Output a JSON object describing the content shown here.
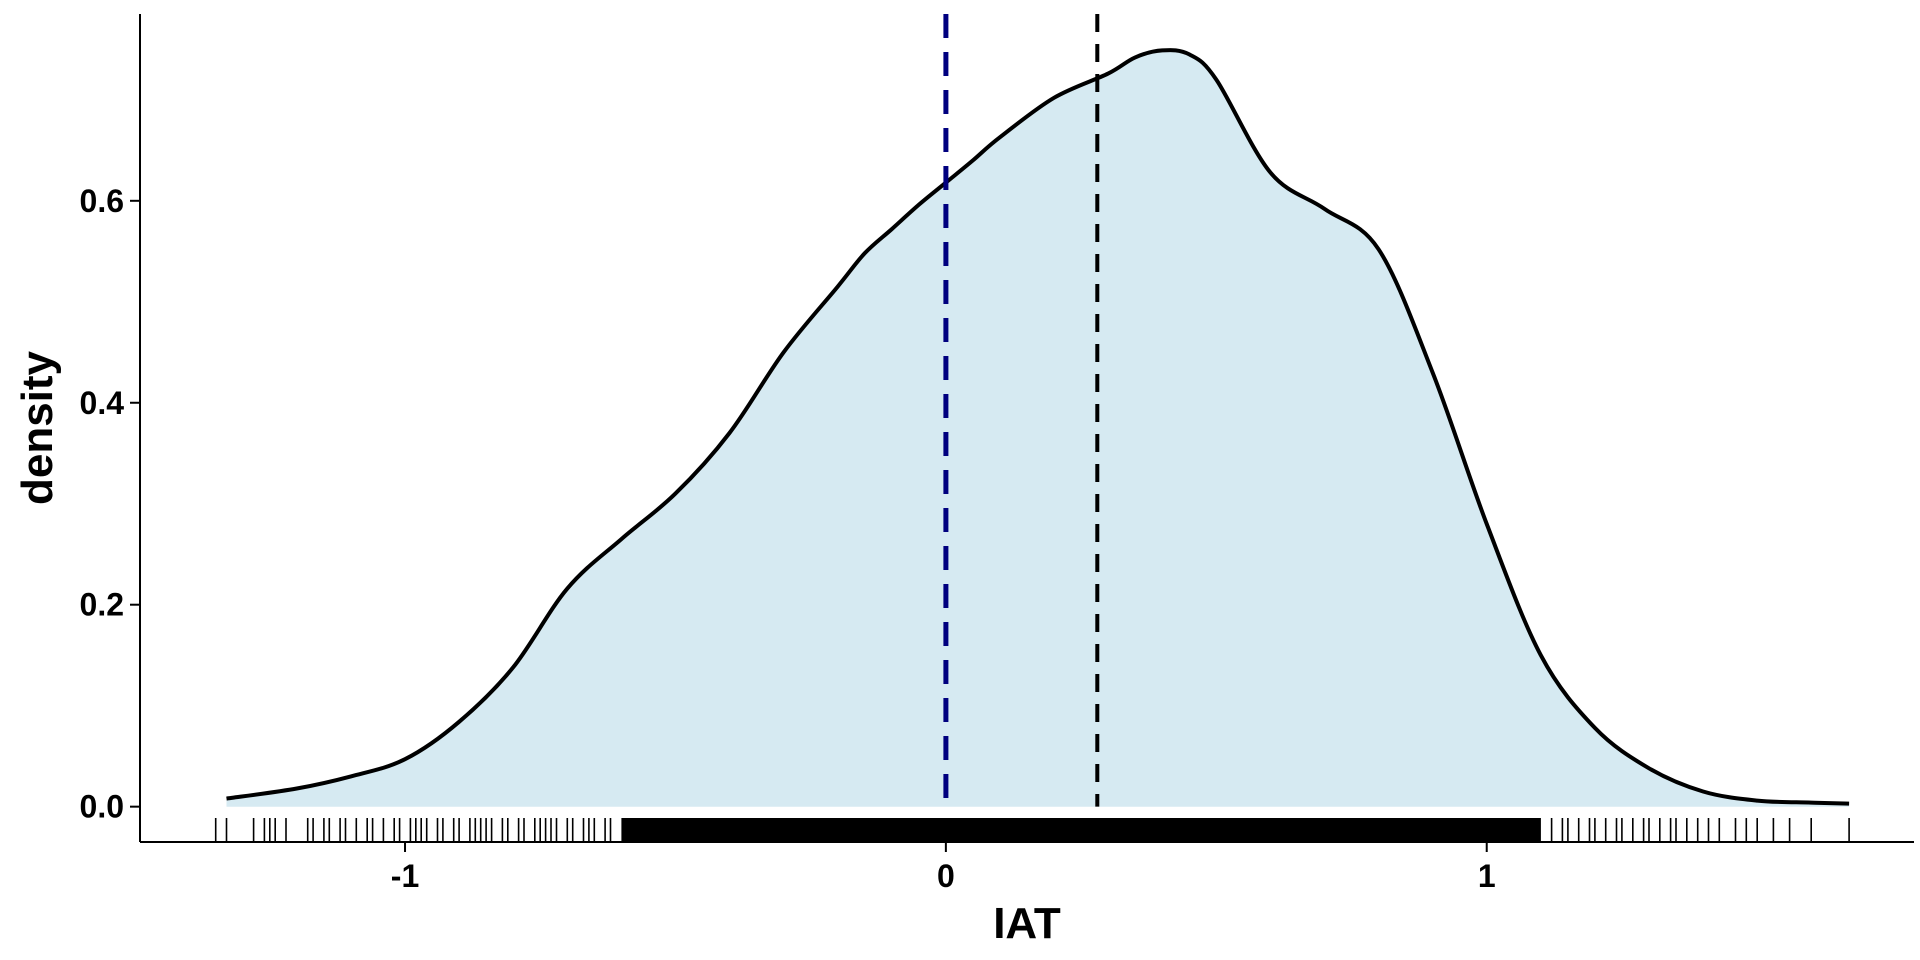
{
  "chart_data": {
    "type": "area",
    "title": "",
    "xlabel": "IAT",
    "ylabel": "density",
    "xlim": [
      -1.49,
      1.79
    ],
    "ylim": [
      -0.035,
      0.785
    ],
    "x_ticks": [
      -1,
      0,
      1
    ],
    "x_tick_labels": [
      "-1",
      "0",
      "1"
    ],
    "y_ticks": [
      0.0,
      0.2,
      0.4,
      0.6
    ],
    "y_tick_labels": [
      "0.0",
      "0.2",
      "0.4",
      "0.6"
    ],
    "grid": false,
    "legend": "none",
    "colors": {
      "fill": "#d6eaf2",
      "curve": "#000000",
      "zero_line": "#00007f",
      "mean_line": "#000000",
      "rug": "#000000"
    },
    "series": [
      {
        "x": [
          -1.33,
          -1.2,
          -1.1,
          -1.0,
          -0.9,
          -0.8,
          -0.7,
          -0.6,
          -0.5,
          -0.4,
          -0.3,
          -0.2,
          -0.15,
          -0.1,
          -0.05,
          0.0,
          0.05,
          0.1,
          0.2,
          0.3,
          0.35,
          0.4,
          0.45,
          0.5,
          0.6,
          0.7,
          0.8,
          0.9,
          1.0,
          1.1,
          1.2,
          1.3,
          1.4,
          1.5,
          1.6,
          1.67
        ],
        "y": [
          0.008,
          0.018,
          0.03,
          0.047,
          0.084,
          0.138,
          0.216,
          0.265,
          0.31,
          0.37,
          0.45,
          0.515,
          0.548,
          0.572,
          0.596,
          0.618,
          0.64,
          0.663,
          0.702,
          0.726,
          0.742,
          0.749,
          0.745,
          0.72,
          0.628,
          0.592,
          0.552,
          0.43,
          0.28,
          0.15,
          0.078,
          0.038,
          0.015,
          0.006,
          0.004,
          0.003
        ]
      }
    ],
    "vlines": [
      {
        "x": 0.0,
        "style": "dashed",
        "color": "#00007f"
      },
      {
        "x": 0.28,
        "style": "dashed",
        "color": "#000000"
      }
    ],
    "rug": {
      "dense_range": [
        -0.6,
        1.1
      ],
      "sparse_x": [
        -1.35,
        -1.33,
        -1.28,
        -1.26,
        -1.24,
        -1.22,
        -1.18,
        -1.17,
        -1.15,
        -1.14,
        -1.12,
        -1.11,
        -1.09,
        -1.07,
        -1.06,
        -1.04,
        -1.02,
        -1.01,
        -0.99,
        -0.97,
        -0.96,
        -0.94,
        -0.93,
        -0.91,
        -0.9,
        -0.88,
        -0.87,
        -0.85,
        -0.84,
        -0.82,
        -0.81,
        -0.79,
        -0.78,
        -0.76,
        -0.75,
        -0.73,
        -0.72,
        -0.7,
        -0.69,
        -0.67,
        -0.66,
        -0.65,
        -0.63,
        -0.62,
        -1.25,
        -0.98,
        -0.86,
        -0.74,
        1.12,
        1.14,
        1.15,
        1.17,
        1.19,
        1.2,
        1.22,
        1.24,
        1.25,
        1.27,
        1.29,
        1.3,
        1.32,
        1.34,
        1.35,
        1.37,
        1.39,
        1.41,
        1.43,
        1.46,
        1.48,
        1.5,
        1.53,
        1.56,
        1.6,
        1.67
      ]
    }
  }
}
